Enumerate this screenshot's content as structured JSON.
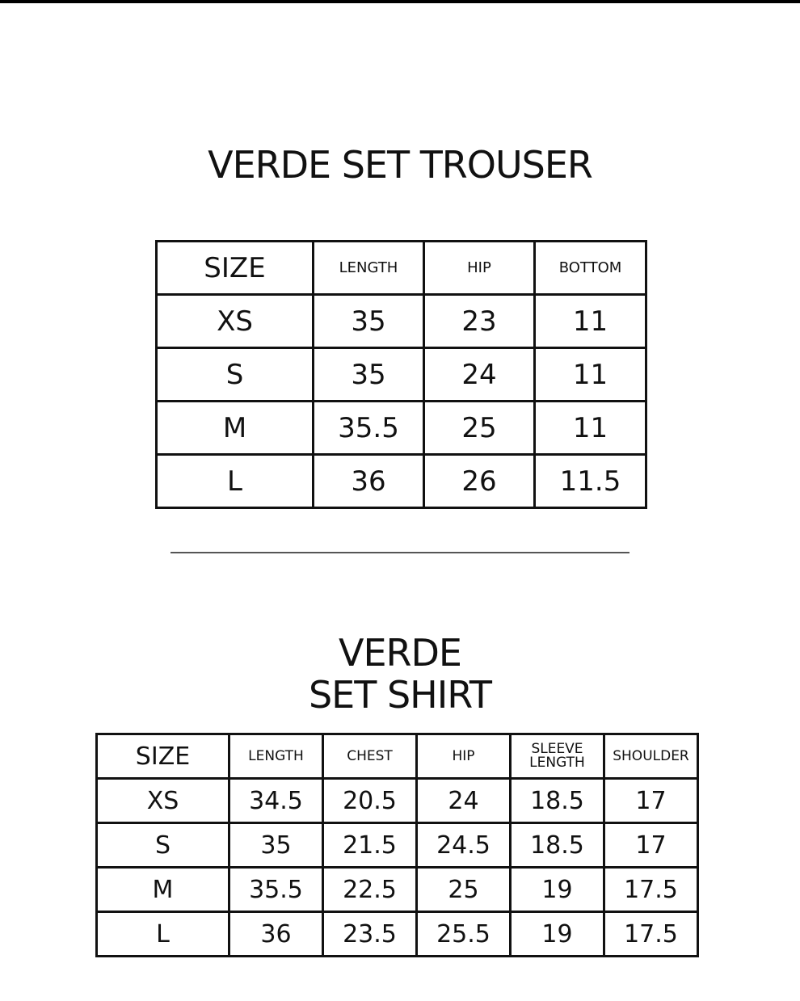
{
  "trouser": {
    "title": "VERDE SET TROUSER",
    "headers": [
      "SIZE",
      "LENGTH",
      "HIP",
      "BOTTOM"
    ],
    "rows": [
      [
        "XS",
        "35",
        "23",
        "11"
      ],
      [
        "S",
        "35",
        "24",
        "11"
      ],
      [
        "M",
        "35.5",
        "25",
        "11"
      ],
      [
        "L",
        "36",
        "26",
        "11.5"
      ]
    ]
  },
  "shirt": {
    "title_line1": "VERDE",
    "title_line2": "SET SHIRT",
    "headers": [
      "SIZE",
      "LENGTH",
      "CHEST",
      "HIP",
      "SLEEVE LENGTH",
      "SHOULDER"
    ],
    "rows": [
      [
        "XS",
        "34.5",
        "20.5",
        "24",
        "18.5",
        "17"
      ],
      [
        "S",
        "35",
        "21.5",
        "24.5",
        "18.5",
        "17"
      ],
      [
        "M",
        "35.5",
        "22.5",
        "25",
        "19",
        "17.5"
      ],
      [
        "L",
        "36",
        "23.5",
        "25.5",
        "19",
        "17.5"
      ]
    ]
  }
}
